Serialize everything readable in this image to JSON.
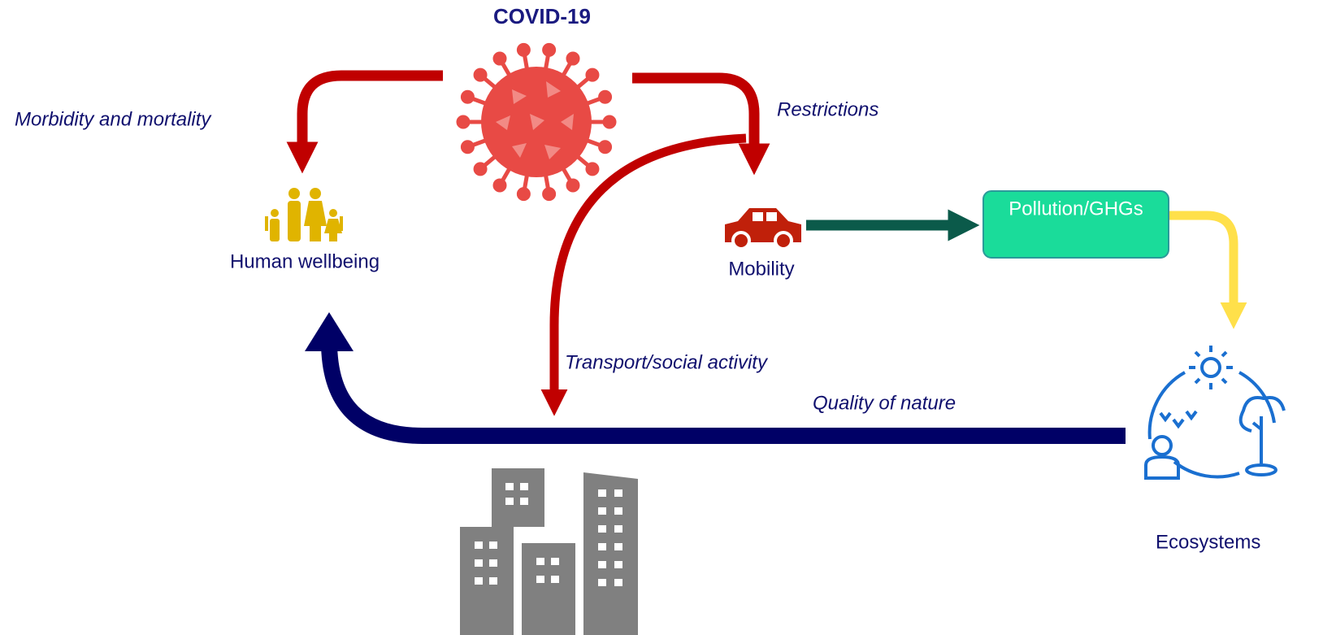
{
  "title": "COVID-19",
  "nodes": [
    {
      "label": "Human wellbeing"
    },
    {
      "label": "Mobility"
    },
    {
      "label": "Pollution/GHGs"
    },
    {
      "label": "Ecosystems"
    }
  ],
  "edges": [
    {
      "label": "Morbidity and mortality"
    },
    {
      "label": "Restrictions"
    },
    {
      "label": "Transport/social activity"
    },
    {
      "label": "Quality of nature"
    }
  ]
}
